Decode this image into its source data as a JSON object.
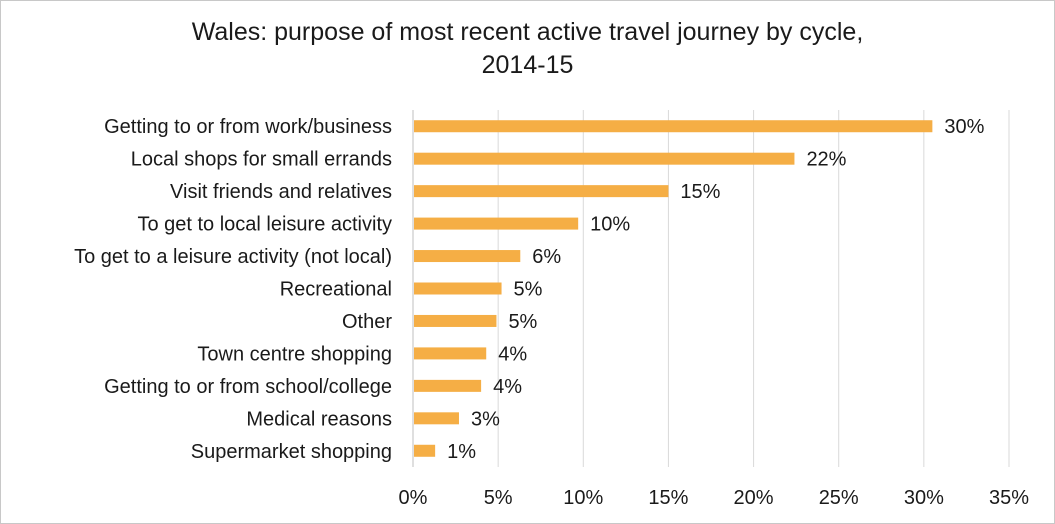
{
  "chart_data": {
    "type": "bar",
    "orientation": "horizontal",
    "title_line1": "Wales: purpose of most recent active travel journey by cycle,",
    "title_line2": "2014-15",
    "categories": [
      "Getting to or from work/business",
      "Local shops for small errands",
      "Visit friends and relatives",
      "To get to local leisure activity",
      "To get to a leisure activity (not local)",
      "Recreational",
      "Other",
      "Town centre shopping",
      "Getting to or from school/college",
      "Medical reasons",
      "Supermarket shopping"
    ],
    "values": [
      30.5,
      22.4,
      15.0,
      9.7,
      6.3,
      5.2,
      4.9,
      4.3,
      4.0,
      2.7,
      1.3
    ],
    "value_labels": [
      "30%",
      "22%",
      "15%",
      "10%",
      "6%",
      "5%",
      "5%",
      "4%",
      "4%",
      "3%",
      "1%"
    ],
    "xlim": [
      0,
      35
    ],
    "xticks": [
      0,
      5,
      10,
      15,
      20,
      25,
      30,
      35
    ],
    "xtick_labels": [
      "0%",
      "5%",
      "10%",
      "15%",
      "20%",
      "25%",
      "30%",
      "35%"
    ],
    "grid": true,
    "bar_color": "#F5AE45",
    "grid_color": "#d9d9d9",
    "axis_color": "#bfbfbf"
  }
}
